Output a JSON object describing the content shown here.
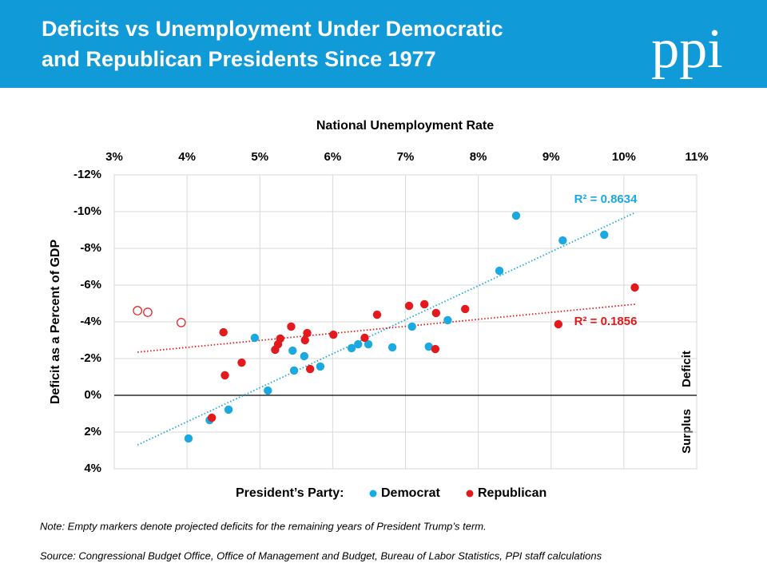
{
  "chart_data": {
    "type": "scatter",
    "title_lines": [
      "Deficits vs Unemployment Under Democratic",
      "and Republican Presidents Since 1977"
    ],
    "logo": "ppi",
    "x_label": "National Unemployment Rate",
    "y_label": "Deficit as a Percent of GDP",
    "deficit_label": "Deficit",
    "surplus_label": "Surplus",
    "legend_title": "President’s Party:",
    "note": "Note: Empty markers denote projected deficits for the remaining years of President Trump’s term.",
    "source": "Source: Congressional Budget Office, Office of Management and Budget, Bureau of Labor Statistics, PPI staff calculations",
    "xlim": [
      3,
      11
    ],
    "xticks": [
      {
        "value": 3,
        "label": "3%"
      },
      {
        "value": 4,
        "label": "4%"
      },
      {
        "value": 5,
        "label": "5%"
      },
      {
        "value": 6,
        "label": "6%"
      },
      {
        "value": 7,
        "label": "7%"
      },
      {
        "value": 8,
        "label": "8%"
      },
      {
        "value": 9,
        "label": "9%"
      },
      {
        "value": 10,
        "label": "10%"
      },
      {
        "value": 11,
        "label": "11%"
      }
    ],
    "ylim": [
      -12,
      4
    ],
    "y_reversed": true,
    "yticks": [
      {
        "value": -12,
        "label": "-12%"
      },
      {
        "value": -10,
        "label": "-10%"
      },
      {
        "value": -8,
        "label": "-8%"
      },
      {
        "value": -6,
        "label": "-6%"
      },
      {
        "value": -4,
        "label": "-4%"
      },
      {
        "value": -2,
        "label": "-2%"
      },
      {
        "value": 0,
        "label": "0%"
      },
      {
        "value": 2,
        "label": "2%"
      },
      {
        "value": 4,
        "label": "4%"
      }
    ],
    "grid": true,
    "series": [
      {
        "name": "Democrat",
        "color": "#1ba9e1",
        "x": [
          4.02,
          4.31,
          4.57,
          4.93,
          5.11,
          5.45,
          5.47,
          5.61,
          5.83,
          6.26,
          6.35,
          6.49,
          6.82,
          7.09,
          7.32,
          7.58,
          8.29,
          8.52,
          9.16,
          9.73
        ],
        "values": [
          2.35,
          1.35,
          0.78,
          -3.13,
          -0.26,
          -2.43,
          -1.35,
          -2.13,
          -1.57,
          -2.57,
          -2.78,
          -2.78,
          -2.61,
          -3.74,
          -2.65,
          -4.09,
          -6.78,
          -9.78,
          -8.43,
          -8.74
        ]
      },
      {
        "name": "Republican",
        "color": "#e3191c",
        "x": [
          4.34,
          4.5,
          4.52,
          4.75,
          5.21,
          5.25,
          5.28,
          5.43,
          5.62,
          5.65,
          5.69,
          6.01,
          6.44,
          6.61,
          7.05,
          7.26,
          7.42,
          7.41,
          7.82,
          9.1,
          10.15
        ],
        "values": [
          1.22,
          -3.43,
          -1.09,
          -1.78,
          -2.48,
          -2.78,
          -3.09,
          -3.74,
          -3.0,
          -3.39,
          -1.43,
          -3.3,
          -3.13,
          -4.39,
          -4.87,
          -4.96,
          -4.48,
          -2.52,
          -4.7,
          -3.87,
          -5.87
        ]
      }
    ],
    "projected": {
      "color": "#e3191c",
      "x": [
        3.32,
        3.46,
        3.92
      ],
      "values": [
        -4.61,
        -4.52,
        -3.96
      ]
    },
    "trendlines": [
      {
        "color": "#1ba9e1",
        "label": "R² = 0.8634",
        "x": [
          3.32,
          10.16
        ],
        "values": [
          2.7,
          -9.96
        ]
      },
      {
        "color": "#e3191c",
        "label": "R² = 0.1856",
        "x": [
          3.32,
          10.16
        ],
        "values": [
          -2.35,
          -4.96
        ]
      }
    ]
  }
}
